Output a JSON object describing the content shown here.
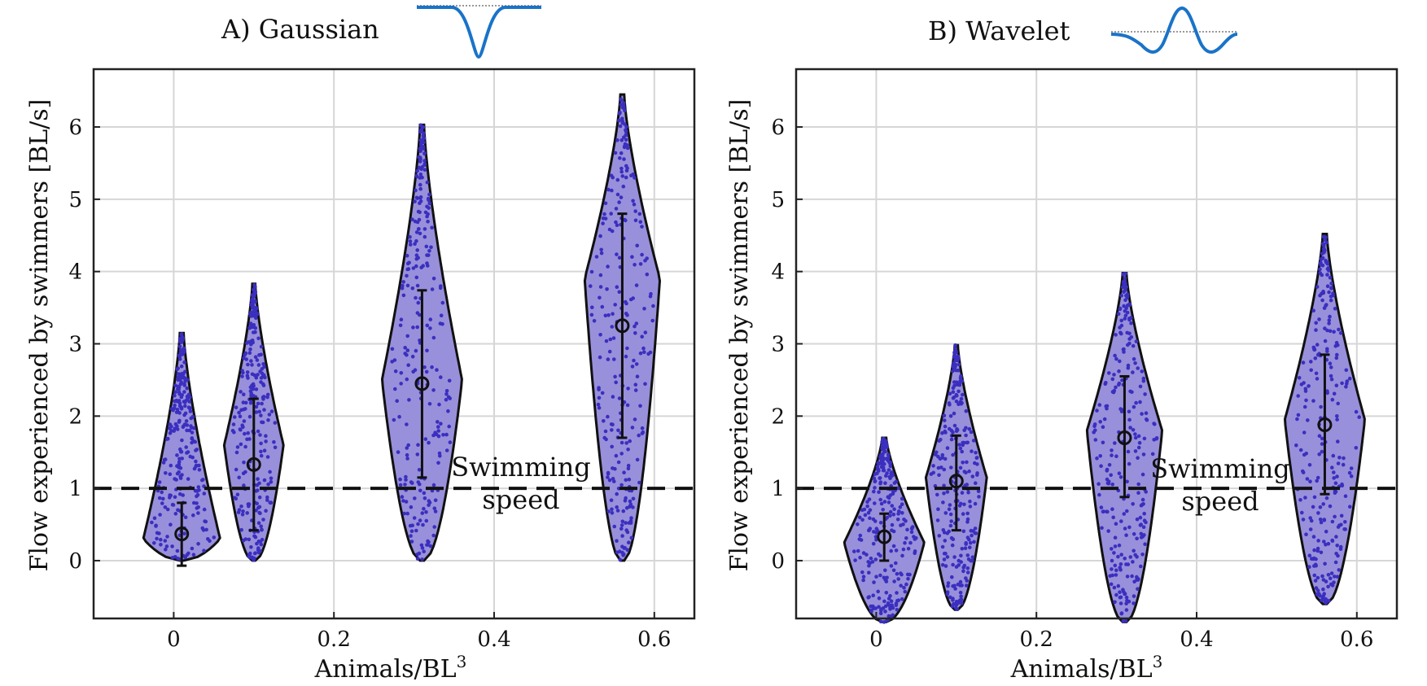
{
  "figure": {
    "description_note": "Two-panel violin plot figure"
  },
  "colors": {
    "violin_fill": "#9990db",
    "violin_edge": "#111111",
    "points": "#3b2fbf",
    "mean_marker": "#111111",
    "wavefunction": "#1a73c8",
    "grid": "#d6d6d6",
    "dashed_line": "#111111"
  },
  "chart_data": [
    {
      "type": "violin",
      "panel": "A",
      "title": "A) Gaussian",
      "icon": "gaussian-dip-icon",
      "xlabel": "Animals/BL",
      "xlabel_sup": "3",
      "ylabel": "Flow experienced by swimmers [BL/s]",
      "xlim": [
        -0.1,
        0.65
      ],
      "ylim": [
        -0.8,
        6.8
      ],
      "xticks": [
        0,
        0.2,
        0.4,
        0.6
      ],
      "xtick_labels": [
        "0",
        "0.2",
        "0.4",
        "0.6"
      ],
      "yticks": [
        0,
        1,
        2,
        3,
        4,
        5,
        6
      ],
      "ytick_labels": [
        "0",
        "1",
        "2",
        "3",
        "4",
        "5",
        "6"
      ],
      "grid": true,
      "reference_line": {
        "y": 1,
        "style": "dashed",
        "label_line1": "Swimming",
        "label_line2": "speed"
      },
      "violins": [
        {
          "x": 0.01,
          "mean": 0.37,
          "err_low": -0.07,
          "err_high": 0.8,
          "min": 0.0,
          "max": 3.15,
          "mode": 0.3,
          "width": 0.048
        },
        {
          "x": 0.1,
          "mean": 1.33,
          "err_low": 0.42,
          "err_high": 2.24,
          "min": 0.0,
          "max": 3.83,
          "mode": 1.6,
          "width": 0.037
        },
        {
          "x": 0.31,
          "mean": 2.45,
          "err_low": 1.15,
          "err_high": 3.74,
          "min": 0.0,
          "max": 6.03,
          "mode": 2.5,
          "width": 0.05
        },
        {
          "x": 0.56,
          "mean": 3.25,
          "err_low": 1.7,
          "err_high": 4.8,
          "min": 0.0,
          "max": 6.45,
          "mode": 3.9,
          "width": 0.047
        }
      ]
    },
    {
      "type": "violin",
      "panel": "B",
      "title": "B) Wavelet",
      "icon": "wavelet-icon",
      "xlabel": "Animals/BL",
      "xlabel_sup": "3",
      "ylabel": "Flow experienced by swimmers [BL/s]",
      "xlim": [
        -0.1,
        0.65
      ],
      "ylim": [
        -0.8,
        6.8
      ],
      "xticks": [
        0,
        0.2,
        0.4,
        0.6
      ],
      "xtick_labels": [
        "0",
        "0.2",
        "0.4",
        "0.6"
      ],
      "yticks": [
        0,
        1,
        2,
        3,
        4,
        5,
        6
      ],
      "ytick_labels": [
        "0",
        "1",
        "2",
        "3",
        "4",
        "5",
        "6"
      ],
      "grid": true,
      "reference_line": {
        "y": 1,
        "style": "dashed",
        "label_line1": "Swimming",
        "label_line2": "speed"
      },
      "violins": [
        {
          "x": 0.01,
          "mean": 0.33,
          "err_low": 0.0,
          "err_high": 0.65,
          "min": -0.85,
          "max": 1.7,
          "mode": 0.25,
          "width": 0.05
        },
        {
          "x": 0.1,
          "mean": 1.1,
          "err_low": 0.42,
          "err_high": 1.73,
          "min": -0.68,
          "max": 2.98,
          "mode": 1.15,
          "width": 0.038
        },
        {
          "x": 0.31,
          "mean": 1.7,
          "err_low": 0.88,
          "err_high": 2.55,
          "min": -0.85,
          "max": 3.98,
          "mode": 1.8,
          "width": 0.047
        },
        {
          "x": 0.56,
          "mean": 1.88,
          "err_low": 0.92,
          "err_high": 2.85,
          "min": -0.6,
          "max": 4.52,
          "mode": 1.95,
          "width": 0.05
        }
      ]
    }
  ]
}
